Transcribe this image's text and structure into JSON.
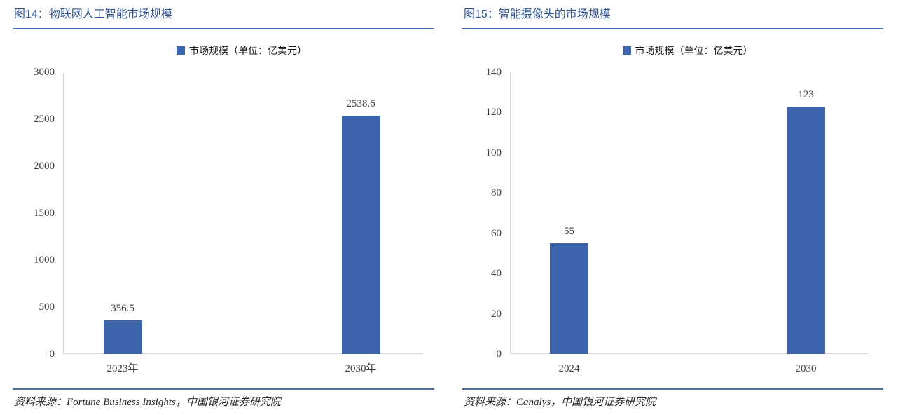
{
  "colors": {
    "accent_title": "#2F5496",
    "rule": "#4A6FA5",
    "bar": "#3C64AC",
    "axis_line": "#D9D9D9",
    "tick_text": "#404040",
    "source_text": "#262626"
  },
  "chart_data": [
    {
      "type": "bar",
      "title": "图14：物联网人工智能市场规模",
      "categories": [
        "2023年",
        "2030年"
      ],
      "series": [
        {
          "name": "市场规模（单位：亿美元）",
          "values": [
            356.5,
            2538.6
          ]
        }
      ],
      "value_labels": [
        "356.5",
        "2538.6"
      ],
      "xlabel": "",
      "ylabel": "",
      "ylim": [
        0,
        3000
      ],
      "yticks": [
        0,
        500,
        1000,
        1500,
        2000,
        2500,
        3000
      ],
      "grid": false,
      "legend_position": "top",
      "bar_color": "#3C64AC",
      "source": "资料来源：Fortune Business Insights，中国银河证券研究院"
    },
    {
      "type": "bar",
      "title": "图15：智能摄像头的市场规模",
      "categories": [
        "2024",
        "2030"
      ],
      "series": [
        {
          "name": "市场规模（单位：亿美元）",
          "values": [
            55,
            123
          ]
        }
      ],
      "value_labels": [
        "55",
        "123"
      ],
      "xlabel": "",
      "ylabel": "",
      "ylim": [
        0,
        140
      ],
      "yticks": [
        0,
        20,
        40,
        60,
        80,
        100,
        120,
        140
      ],
      "grid": false,
      "legend_position": "top",
      "bar_color": "#3C64AC",
      "source": "资料来源：Canalys，中国银河证券研究院"
    }
  ]
}
